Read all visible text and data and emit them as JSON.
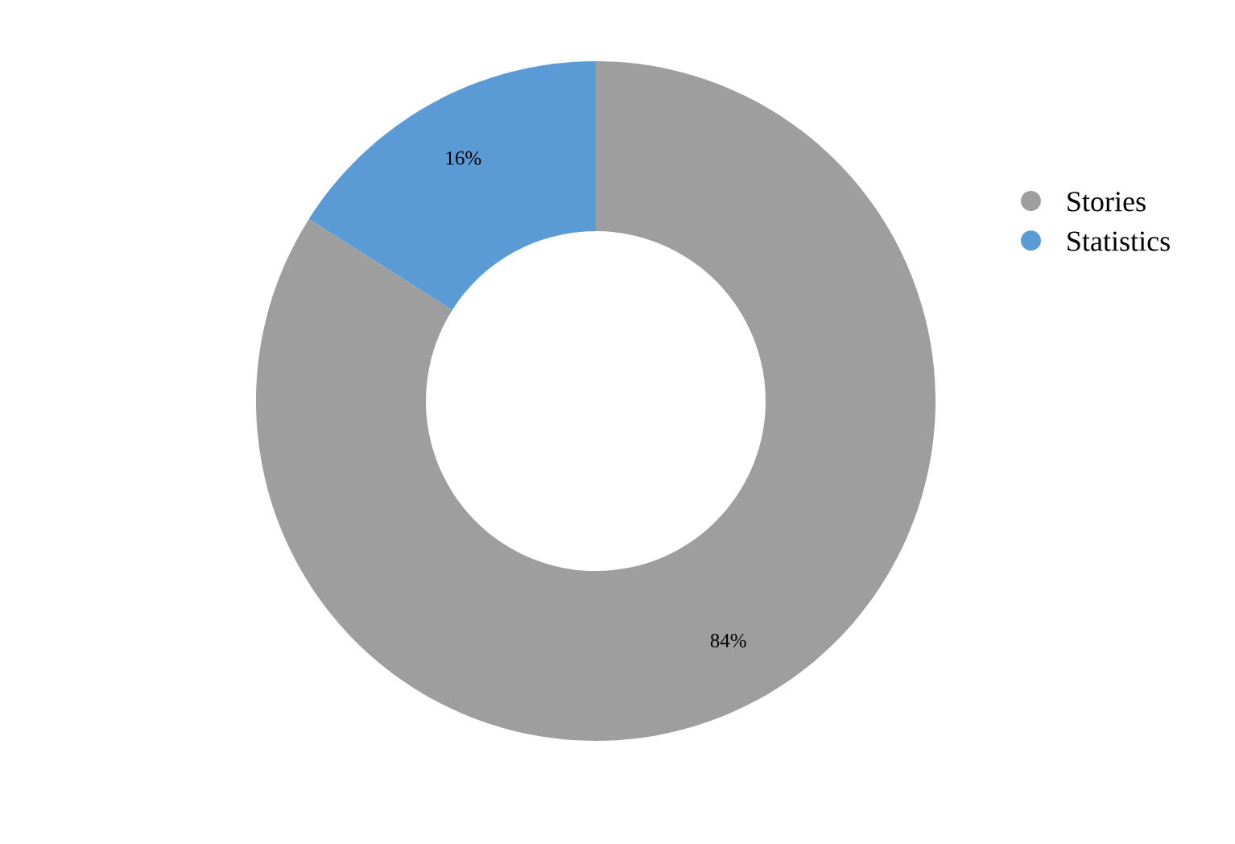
{
  "chart_data": {
    "type": "donut",
    "categories": [
      "Stories",
      "Statistics"
    ],
    "values": [
      84,
      16
    ],
    "colors": [
      "#9e9e9e",
      "#5b9bd5"
    ],
    "value_labels": [
      "84%",
      "16%"
    ],
    "legend": "right"
  }
}
